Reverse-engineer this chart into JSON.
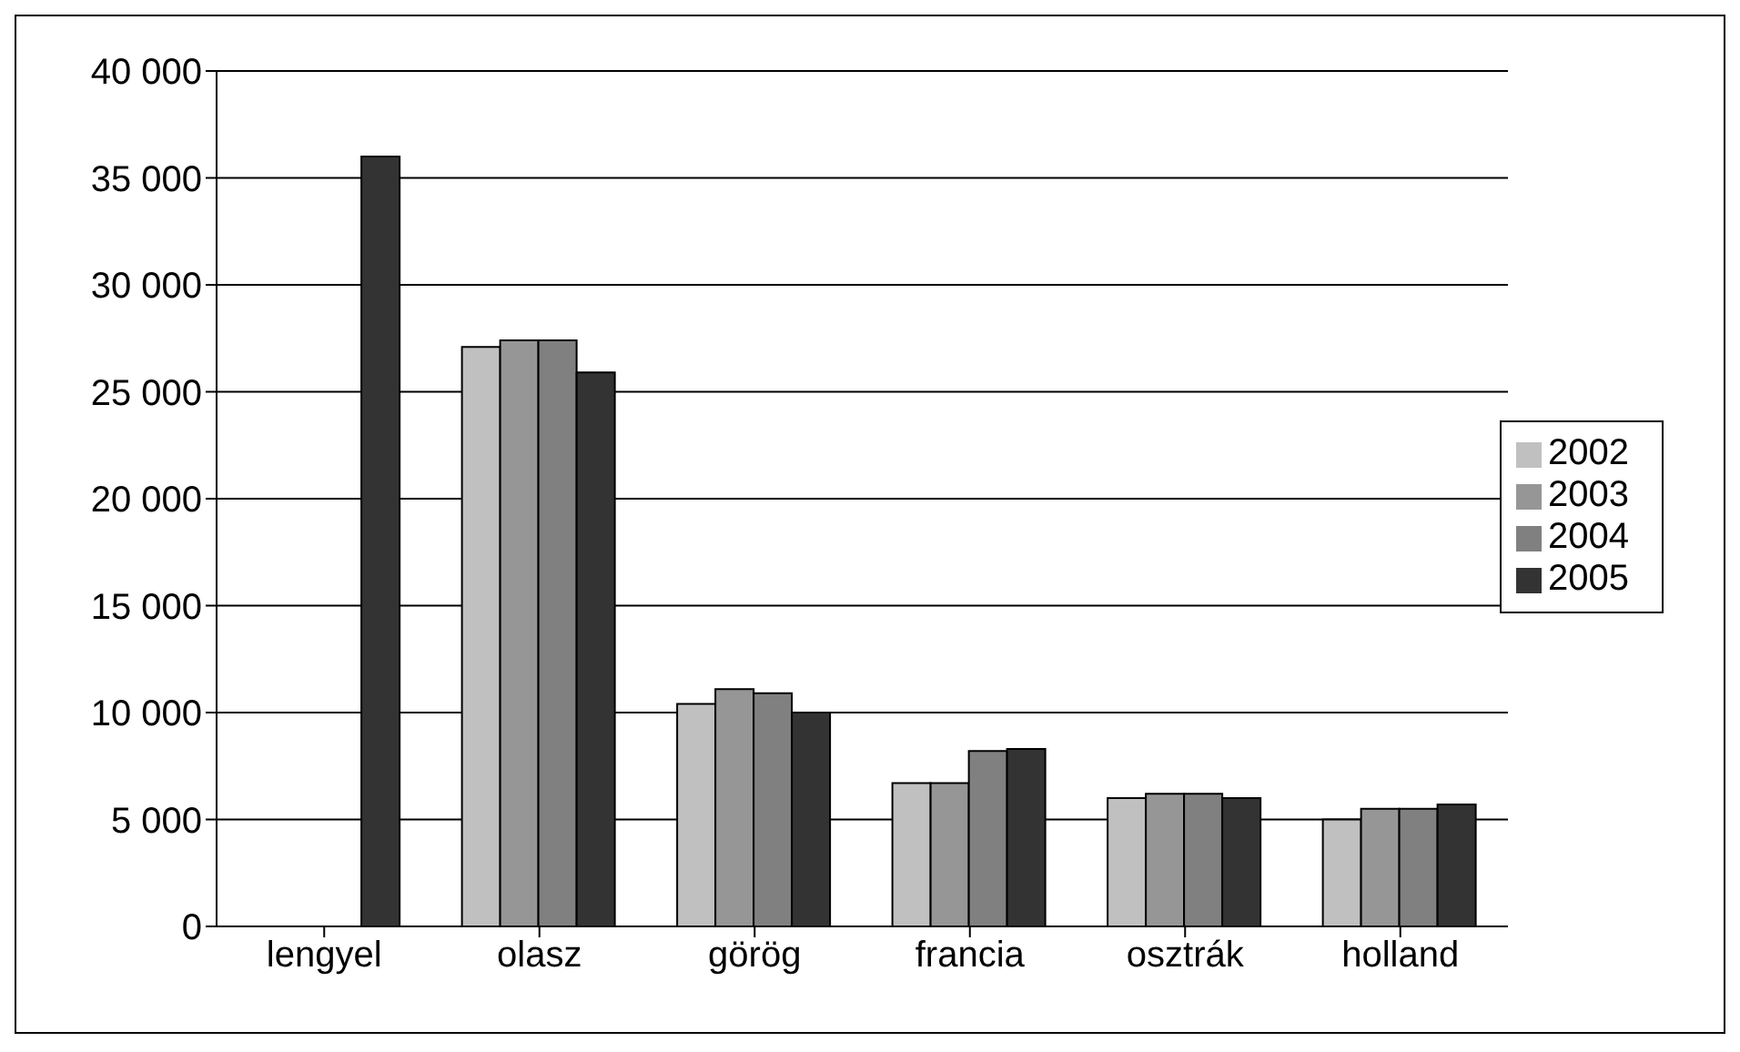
{
  "chart_data": {
    "type": "bar",
    "categories": [
      "lengyel",
      "olasz",
      "görög",
      "francia",
      "osztrák",
      "holland"
    ],
    "series": [
      {
        "name": "2002",
        "color": "#c0c0c0",
        "values": [
          null,
          27100,
          10400,
          6700,
          6000,
          5000
        ]
      },
      {
        "name": "2003",
        "color": "#969696",
        "values": [
          null,
          27400,
          11100,
          6700,
          6200,
          5500
        ]
      },
      {
        "name": "2004",
        "color": "#808080",
        "values": [
          null,
          27400,
          10900,
          8200,
          6200,
          5500
        ]
      },
      {
        "name": "2005",
        "color": "#333333",
        "values": [
          36000,
          25900,
          10000,
          8300,
          6000,
          5700
        ]
      }
    ],
    "ylim": [
      0,
      40000
    ],
    "yticks": [
      {
        "value": 0,
        "label": "0"
      },
      {
        "value": 5000,
        "label": "5 000"
      },
      {
        "value": 10000,
        "label": "10 000"
      },
      {
        "value": 15000,
        "label": "15 000"
      },
      {
        "value": 20000,
        "label": "20 000"
      },
      {
        "value": 25000,
        "label": "25 000"
      },
      {
        "value": 30000,
        "label": "30 000"
      },
      {
        "value": 35000,
        "label": "35 000"
      },
      {
        "value": 40000,
        "label": "40 000"
      }
    ],
    "grid": "y",
    "legend": "right"
  }
}
